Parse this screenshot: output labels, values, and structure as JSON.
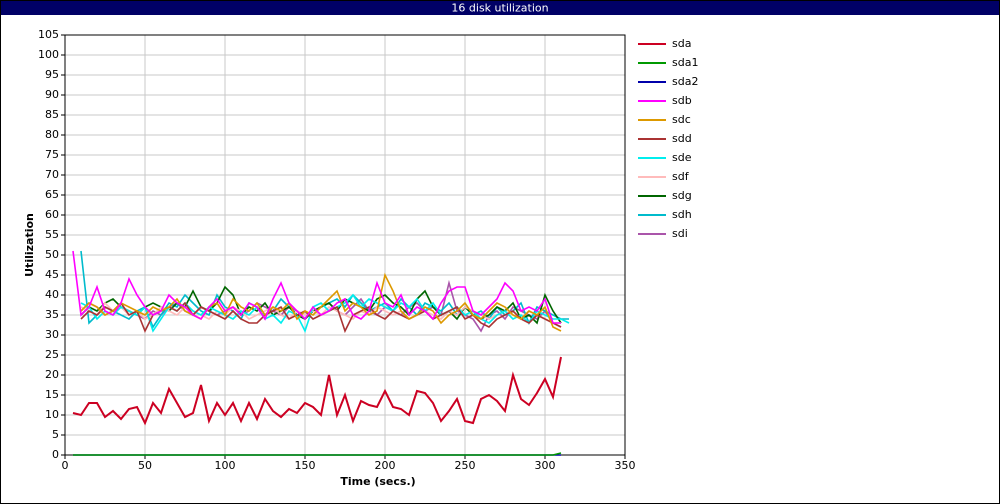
{
  "chart_data": {
    "type": "line",
    "title": "16 disk utilization",
    "x_label": "Time (secs.)",
    "y_label": "Utilization",
    "x": [
      5,
      10,
      15,
      20,
      25,
      30,
      35,
      40,
      45,
      50,
      55,
      60,
      65,
      70,
      75,
      80,
      85,
      90,
      95,
      100,
      105,
      110,
      115,
      120,
      125,
      130,
      135,
      140,
      145,
      150,
      155,
      160,
      165,
      170,
      175,
      180,
      185,
      190,
      195,
      200,
      205,
      210,
      215,
      220,
      225,
      230,
      235,
      240,
      245,
      250,
      255,
      260,
      265,
      270,
      275,
      280,
      285,
      290,
      295,
      300,
      305,
      310,
      315
    ],
    "xlim": [
      0,
      350
    ],
    "xticks": [
      0,
      50,
      100,
      150,
      200,
      250,
      300,
      350
    ],
    "ylim": [
      0,
      105
    ],
    "yticks": [
      0,
      5,
      10,
      15,
      20,
      25,
      30,
      35,
      40,
      45,
      50,
      55,
      60,
      65,
      70,
      75,
      80,
      85,
      90,
      95,
      100,
      105
    ],
    "grid": true,
    "series": [
      {
        "name": "sda",
        "color": "#cc0022",
        "values": [
          10.5,
          10,
          13,
          13,
          9.5,
          11,
          9,
          11.5,
          12,
          8,
          13,
          10.5,
          16.5,
          13,
          9.5,
          10.5,
          17.5,
          8.5,
          13,
          10,
          13,
          8.5,
          13,
          9,
          14,
          11,
          9.5,
          11.5,
          10.5,
          13,
          12,
          10,
          20,
          10,
          15,
          8.5,
          13.5,
          12.5,
          12,
          16,
          12,
          11.5,
          10,
          16,
          15.5,
          13,
          8.5,
          11,
          14,
          8.5,
          8,
          14,
          15,
          13.5,
          11,
          20,
          14,
          12.5,
          15.5,
          19,
          14.5,
          24.5,
          null
        ]
      },
      {
        "name": "sda1",
        "color": "#009900",
        "values": [
          0,
          0,
          0,
          0,
          0,
          0,
          0,
          0,
          0,
          0,
          0,
          0,
          0,
          0,
          0,
          0,
          0,
          0,
          0,
          0,
          0,
          0,
          0,
          0,
          0,
          0,
          0,
          0,
          0,
          0,
          0,
          0,
          0,
          0,
          0,
          0,
          0,
          0,
          0,
          0,
          0,
          0,
          0,
          0,
          0,
          0,
          0,
          0,
          0,
          0,
          0,
          0,
          0,
          0,
          0,
          0,
          0,
          0,
          0,
          0,
          0,
          0.5,
          null
        ]
      },
      {
        "name": "sda2",
        "color": "#0000aa",
        "values": [
          0,
          0,
          0,
          0,
          0,
          0,
          0,
          0,
          0,
          0,
          0,
          0,
          0,
          0,
          0,
          0,
          0,
          0,
          0,
          0,
          0,
          0,
          0,
          0,
          0,
          0,
          0,
          0,
          0,
          0,
          0,
          0,
          0,
          0,
          0,
          0,
          0,
          0,
          0,
          0,
          0,
          0,
          0,
          0,
          0,
          0,
          0,
          0,
          0,
          0,
          0,
          0,
          0,
          0,
          0,
          0,
          0,
          0,
          0,
          0,
          0,
          0,
          null
        ]
      },
      {
        "name": "sdb",
        "color": "#ff00ff",
        "values": [
          51,
          35,
          37,
          42,
          36,
          35,
          38,
          44,
          40,
          37,
          35,
          36,
          40,
          38,
          37,
          35,
          34,
          37,
          39,
          36,
          37,
          35,
          38,
          37,
          34,
          39,
          43,
          38,
          36,
          34,
          37,
          35,
          36,
          38,
          39,
          35,
          34,
          36,
          43,
          38,
          37,
          40,
          35,
          37,
          36,
          34,
          38,
          41,
          42,
          42,
          36,
          35,
          37,
          39,
          43,
          41,
          36,
          37,
          36,
          39,
          33,
          33,
          null
        ]
      },
      {
        "name": "sdc",
        "color": "#dd9900",
        "values": [
          null,
          36,
          38,
          37,
          35,
          36,
          38,
          37,
          36,
          35,
          37,
          36,
          37,
          39,
          36,
          35,
          34,
          37,
          38,
          35,
          39,
          37,
          36,
          38,
          35,
          37,
          36,
          38,
          34,
          36,
          35,
          37,
          39,
          41,
          36,
          38,
          37,
          35,
          36,
          45,
          41,
          36,
          34,
          35,
          37,
          36,
          33,
          35,
          36,
          38,
          35,
          34,
          36,
          38,
          37,
          35,
          34,
          36,
          35,
          37,
          32,
          31,
          null
        ]
      },
      {
        "name": "sdd",
        "color": "#aa3333",
        "values": [
          null,
          34,
          36,
          35,
          37,
          36,
          38,
          35,
          36,
          31,
          35,
          36,
          37,
          36,
          38,
          35,
          37,
          36,
          35,
          34,
          36,
          34,
          33,
          33,
          35,
          36,
          37,
          34,
          35,
          36,
          34,
          35,
          36,
          37,
          31,
          35,
          36,
          37,
          35,
          34,
          36,
          35,
          34,
          35,
          36,
          34,
          35,
          36,
          37,
          34,
          35,
          33,
          32,
          34,
          35,
          36,
          34,
          33,
          35,
          34,
          33,
          32,
          null
        ]
      },
      {
        "name": "sde",
        "color": "#00eeee",
        "values": [
          null,
          38,
          37,
          34,
          36,
          35,
          37,
          36,
          35,
          37,
          31,
          34,
          37,
          36,
          38,
          36,
          35,
          37,
          36,
          35,
          34,
          36,
          35,
          37,
          34,
          35,
          33,
          36,
          35,
          31,
          37,
          38,
          36,
          37,
          38,
          40,
          37,
          39,
          38,
          37,
          36,
          38,
          37,
          39,
          36,
          38,
          35,
          36,
          37,
          35,
          36,
          34,
          33,
          35,
          36,
          34,
          35,
          33,
          36,
          35,
          34,
          34,
          33
        ]
      },
      {
        "name": "sdf",
        "color": "#ffbbbb",
        "values": [
          null,
          37,
          36,
          35,
          38,
          36,
          37,
          35,
          36,
          34,
          35,
          37,
          36,
          35,
          37,
          36,
          35,
          34,
          36,
          35,
          37,
          36,
          34,
          35,
          36,
          37,
          35,
          34,
          36,
          35,
          36,
          35,
          37,
          36,
          35,
          34,
          36,
          35,
          37,
          36,
          35,
          36,
          34,
          35,
          36,
          35,
          34,
          36,
          35,
          37,
          36,
          35,
          34,
          35,
          36,
          35,
          34,
          36,
          35,
          34,
          33,
          33,
          null
        ]
      },
      {
        "name": "sdg",
        "color": "#006600",
        "values": [
          null,
          35,
          37,
          36,
          38,
          39,
          37,
          36,
          35,
          37,
          38,
          37,
          36,
          38,
          37,
          41,
          37,
          36,
          38,
          42,
          40,
          35,
          37,
          36,
          38,
          35,
          36,
          37,
          35,
          34,
          36,
          37,
          38,
          36,
          39,
          38,
          37,
          36,
          39,
          40,
          38,
          37,
          35,
          39,
          41,
          37,
          35,
          36,
          34,
          37,
          35,
          34,
          35,
          37,
          36,
          38,
          34,
          35,
          33,
          40,
          36,
          33,
          null
        ]
      },
      {
        "name": "sdh",
        "color": "#00bbcc",
        "values": [
          null,
          51,
          33,
          35,
          37,
          36,
          35,
          34,
          36,
          37,
          32,
          35,
          38,
          37,
          40,
          38,
          36,
          35,
          40,
          37,
          36,
          34,
          38,
          37,
          35,
          36,
          39,
          37,
          35,
          34,
          36,
          37,
          38,
          39,
          37,
          40,
          38,
          36,
          37,
          38,
          36,
          39,
          37,
          35,
          38,
          37,
          36,
          38,
          35,
          37,
          35,
          36,
          34,
          37,
          35,
          36,
          38,
          33,
          37,
          36,
          35,
          34,
          34
        ]
      },
      {
        "name": "sdi",
        "color": "#aa55aa",
        "values": [
          null,
          36,
          38,
          37,
          35,
          36,
          37,
          36,
          35,
          34,
          36,
          35,
          37,
          38,
          36,
          35,
          37,
          36,
          35,
          36,
          37,
          35,
          36,
          38,
          37,
          36,
          35,
          37,
          36,
          35,
          36,
          37,
          38,
          36,
          35,
          37,
          39,
          36,
          35,
          37,
          36,
          35,
          37,
          38,
          36,
          37,
          35,
          43,
          36,
          35,
          34,
          31,
          35,
          36,
          34,
          37,
          36,
          35,
          34,
          36,
          33,
          32,
          null
        ]
      }
    ]
  }
}
